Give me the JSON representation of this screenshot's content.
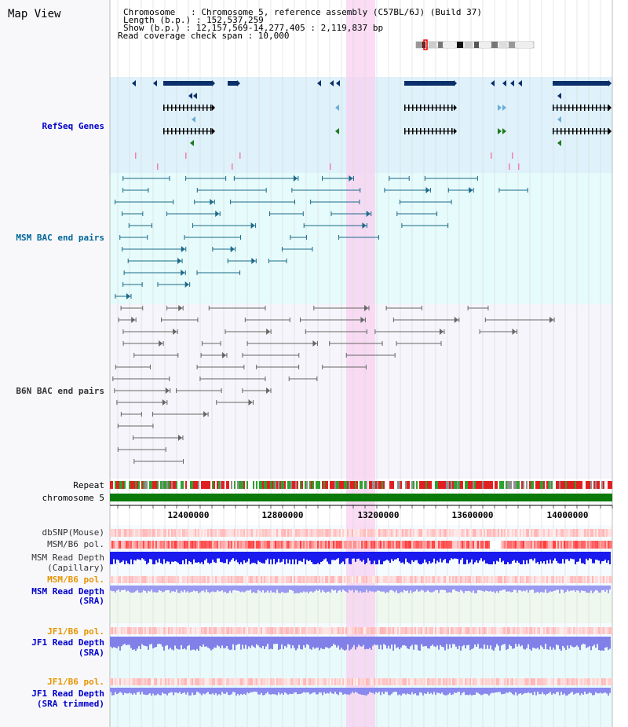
{
  "title": "Map View",
  "info": {
    "chromosome": "Chromosome   : Chromosome 5, reference assembly (C57BL/6J) (Build 37)",
    "length": "Length (b.p.) : 152,537,259",
    "show": "Show (b.p.) : 12,157,569-14,277,405 : 2,119,837 bp",
    "coverage": "Read coverage check span : 10,000"
  },
  "tracks": {
    "refseq": "RefSeq Genes",
    "msm_bac": "MSM BAC end pairs",
    "b6n_bac": "B6N BAC end pairs",
    "repeat": "Repeat",
    "chromosome": "chromosome 5",
    "dbsnp": "dbSNP(Mouse)",
    "msm_b6_pol": "MSM/B6 pol.",
    "msm_depth_cap_1": "MSM Read Depth",
    "msm_depth_cap_2": "(Capillary)",
    "msm_b6_pol_2": "MSM/B6 pol.",
    "msm_depth_sra_1": "MSM Read Depth",
    "msm_depth_sra_2": "(SRA)",
    "jf1_b6_pol": "JF1/B6 pol.",
    "jf1_depth_sra_1": "JF1 Read Depth",
    "jf1_depth_sra_2": "(SRA)",
    "jf1_b6_pol_2": "JF1/B6 pol.",
    "jf1_depth_trim_1": "JF1 Read Depth",
    "jf1_depth_trim_2": "(SRA trimmed)"
  },
  "axis": {
    "ticks": [
      "12400000",
      "12800000",
      "13200000",
      "13600000",
      "14000000"
    ]
  },
  "colors": {
    "refseq_bg": "#dff1fa",
    "msm_bg": "#e6fbfb",
    "b6n_bg": "#f5f5fb",
    "highlight": "#f8d0f0",
    "gene_dark": "#0b2f6b",
    "gene_green": "#1e7a1e",
    "bac_teal": "#1b6a8a",
    "bac_grey": "#666666",
    "chromosome_bar": "#0a7a0a"
  }
}
